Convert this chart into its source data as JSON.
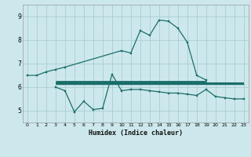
{
  "bg_color": "#cde8ec",
  "grid_color": "#aacdd4",
  "line_color": "#1a6e6a",
  "title": "Humidex (Indice chaleur)",
  "ylabel_vals": [
    5,
    6,
    7,
    8,
    9
  ],
  "xlim": [
    -0.5,
    23.5
  ],
  "ylim": [
    4.5,
    9.5
  ],
  "curve1_x": [
    0,
    1,
    2,
    3,
    4,
    10,
    11,
    12,
    13,
    14,
    15,
    16,
    17,
    18,
    19
  ],
  "curve1_y": [
    6.5,
    6.5,
    6.65,
    6.75,
    6.85,
    7.55,
    7.45,
    8.4,
    8.2,
    8.85,
    8.8,
    8.5,
    7.9,
    6.5,
    6.3
  ],
  "curve2_x": [
    3,
    4,
    5,
    6,
    7,
    8,
    9,
    10,
    11,
    12,
    13,
    14,
    15,
    16,
    17,
    18,
    19,
    20,
    21,
    22,
    23
  ],
  "curve2_y": [
    6.0,
    5.85,
    4.95,
    5.4,
    5.05,
    5.1,
    6.55,
    5.85,
    5.9,
    5.9,
    5.85,
    5.8,
    5.75,
    5.75,
    5.7,
    5.65,
    5.9,
    5.6,
    5.55,
    5.5,
    5.5
  ],
  "hline1_x": [
    3,
    19
  ],
  "hline1_y": [
    6.22,
    6.22
  ],
  "hline2_x": [
    3,
    23
  ],
  "hline2_y": [
    6.17,
    6.17
  ],
  "hline3_x": [
    3,
    23
  ],
  "hline3_y": [
    6.12,
    6.12
  ]
}
